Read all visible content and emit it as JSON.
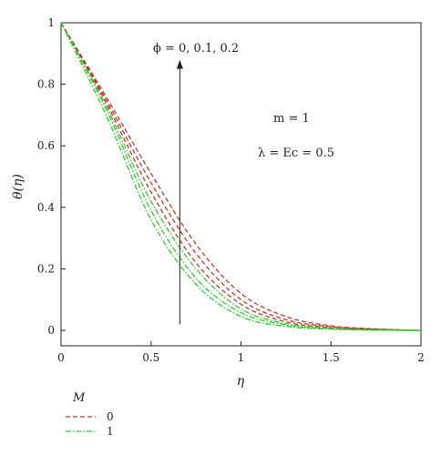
{
  "chart_data": {
    "type": "line",
    "xlabel": "η",
    "ylabel": "θ(η)",
    "xlim": [
      0,
      2
    ],
    "ylim": [
      -0.05,
      1
    ],
    "xticks": [
      0,
      0.5,
      1,
      1.5,
      2
    ],
    "yticks": [
      0,
      0.2,
      0.4,
      0.6,
      0.8,
      1
    ],
    "xtick_labels": [
      "0",
      "0.5",
      "1",
      "1.5",
      "2"
    ],
    "ytick_labels": [
      "0",
      "0.2",
      "0.4",
      "0.6",
      "0.8",
      "1"
    ],
    "grid": false,
    "legend_title": "M",
    "legend_position": "bottom-left",
    "legend": [
      {
        "label": "0",
        "color": "#c0392b",
        "dash": "dashed"
      },
      {
        "label": "1",
        "color": "#33cc33",
        "dash": "dash-dot"
      }
    ],
    "annotations": {
      "arrow_label": "ϕ = 0, 0.1, 0.2",
      "param_m": "m = 1",
      "param_lambda": "λ = Ec = 0.5"
    },
    "arrow": {
      "x": 0.66,
      "y_from": 0.02,
      "y_to": 0.88
    },
    "series": [
      {
        "group": "0",
        "color": "#c0392b",
        "dash": "dashed",
        "x": [
          0,
          0.25,
          0.5,
          0.75,
          1,
          1.25,
          1.5,
          1.75,
          2
        ],
        "y": [
          1,
          0.76,
          0.51,
          0.28,
          0.12,
          0.045,
          0.015,
          0.005,
          0
        ]
      },
      {
        "group": "0",
        "color": "#c0392b",
        "dash": "dashed",
        "x": [
          0,
          0.25,
          0.5,
          0.75,
          1,
          1.25,
          1.5,
          1.75,
          2
        ],
        "y": [
          1,
          0.75,
          0.48,
          0.25,
          0.1,
          0.035,
          0.012,
          0.004,
          0
        ]
      },
      {
        "group": "0",
        "color": "#c0392b",
        "dash": "dashed",
        "x": [
          0,
          0.25,
          0.5,
          0.75,
          1,
          1.25,
          1.5,
          1.75,
          2
        ],
        "y": [
          1,
          0.74,
          0.45,
          0.22,
          0.085,
          0.028,
          0.009,
          0.003,
          0
        ]
      },
      {
        "group": "1",
        "color": "#33cc33",
        "dash": "dash-dot",
        "x": [
          0,
          0.25,
          0.5,
          0.75,
          1,
          1.25,
          1.5,
          1.75,
          2
        ],
        "y": [
          1,
          0.73,
          0.42,
          0.2,
          0.07,
          0.022,
          0.007,
          0.002,
          0
        ]
      },
      {
        "group": "1",
        "color": "#33cc33",
        "dash": "dash-dot",
        "x": [
          0,
          0.25,
          0.5,
          0.75,
          1,
          1.25,
          1.5,
          1.75,
          2
        ],
        "y": [
          1,
          0.72,
          0.39,
          0.17,
          0.058,
          0.018,
          0.005,
          0.001,
          0
        ]
      },
      {
        "group": "1",
        "color": "#33cc33",
        "dash": "dash-dot",
        "x": [
          0,
          0.25,
          0.5,
          0.75,
          1,
          1.25,
          1.5,
          1.75,
          2
        ],
        "y": [
          1,
          0.7,
          0.36,
          0.15,
          0.045,
          0.013,
          0.004,
          0.001,
          0
        ]
      }
    ]
  }
}
